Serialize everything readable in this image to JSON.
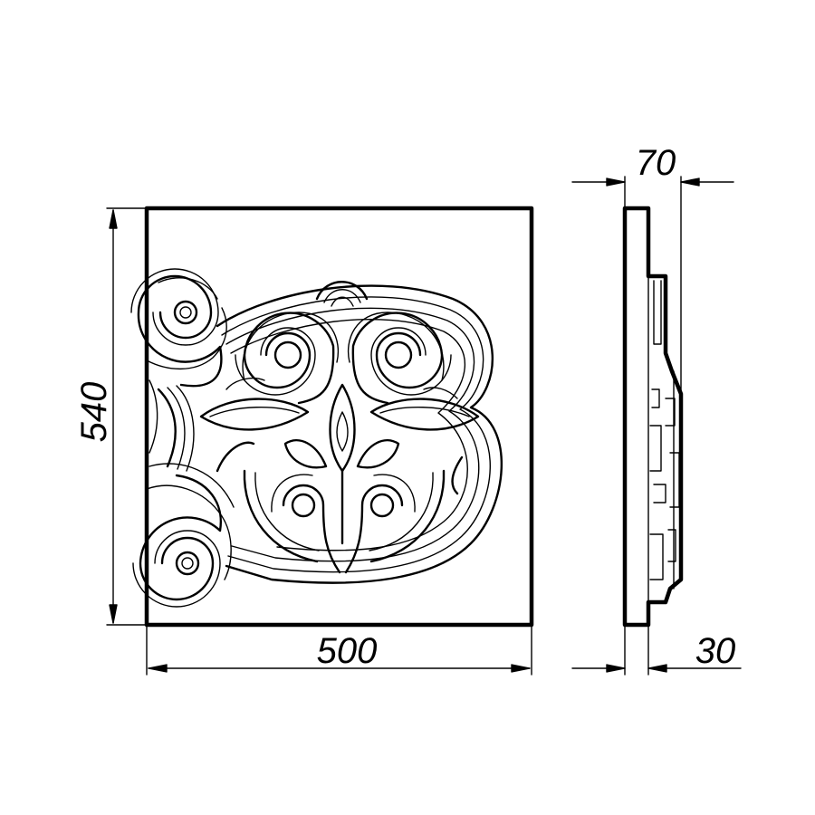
{
  "dimensions": {
    "width": "500",
    "height": "540",
    "depth_total": "70",
    "depth_base": "30"
  },
  "colors": {
    "line": "#000000",
    "background": "#ffffff"
  }
}
